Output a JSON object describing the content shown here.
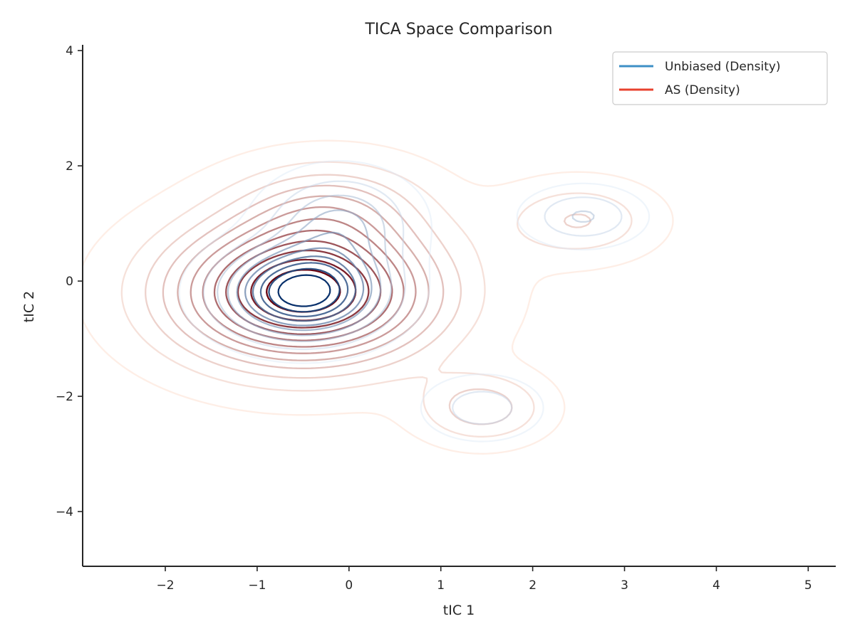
{
  "chart_data": {
    "type": "contour",
    "title": "TICA Space Comparison",
    "xlabel": "tIC 1",
    "ylabel": "tIC 2",
    "xlim": [
      -2.9,
      5.3
    ],
    "ylim": [
      -4.95,
      4.1
    ],
    "x_ticks": [
      -2,
      -1,
      0,
      1,
      2,
      3,
      4,
      5
    ],
    "y_ticks": [
      -4,
      -2,
      0,
      2,
      4
    ],
    "x_tick_labels": [
      "−2",
      "−1",
      "0",
      "1",
      "2",
      "3",
      "4",
      "5"
    ],
    "y_tick_labels": [
      "−4",
      "−2",
      "0",
      "2",
      "4"
    ],
    "grid": false,
    "legend_position": "top-right",
    "legend": [
      {
        "label": "Unbiased (Density)",
        "color": "#3d8fc6"
      },
      {
        "label": "AS (Density)",
        "color": "#e8412e"
      }
    ],
    "series": [
      {
        "name": "Unbiased (Density)",
        "colormap": "Blues",
        "components": [
          {
            "center": [
              -0.5,
              -0.2
            ],
            "spread": [
              0.55,
              0.5
            ],
            "weight": 1.0
          },
          {
            "center": [
              -0.1,
              1.0
            ],
            "spread": [
              0.5,
              0.55
            ],
            "weight": 0.35
          },
          {
            "center": [
              2.55,
              1.12
            ],
            "spread": [
              0.4,
              0.32
            ],
            "weight": 0.25
          },
          {
            "center": [
              1.45,
              -2.2
            ],
            "spread": [
              0.4,
              0.35
            ],
            "weight": 0.2
          }
        ]
      },
      {
        "name": "AS (Density)",
        "colormap": "Reds",
        "components": [
          {
            "center": [
              -0.5,
              -0.2
            ],
            "spread": [
              0.95,
              0.82
            ],
            "weight": 1.0
          },
          {
            "center": [
              -0.2,
              1.3
            ],
            "spread": [
              0.7,
              0.55
            ],
            "weight": 0.25
          },
          {
            "center": [
              2.5,
              1.05
            ],
            "spread": [
              0.55,
              0.45
            ],
            "weight": 0.2
          },
          {
            "center": [
              1.45,
              -2.2
            ],
            "spread": [
              0.45,
              0.4
            ],
            "weight": 0.25
          }
        ]
      }
    ],
    "colors": {
      "axis": "#262626",
      "legend_border": "#cccccc",
      "blue_light": "#dbe9f6",
      "blue_dark": "#08306b",
      "red_light": "#fee0d2",
      "red_dark": "#67000d"
    }
  }
}
